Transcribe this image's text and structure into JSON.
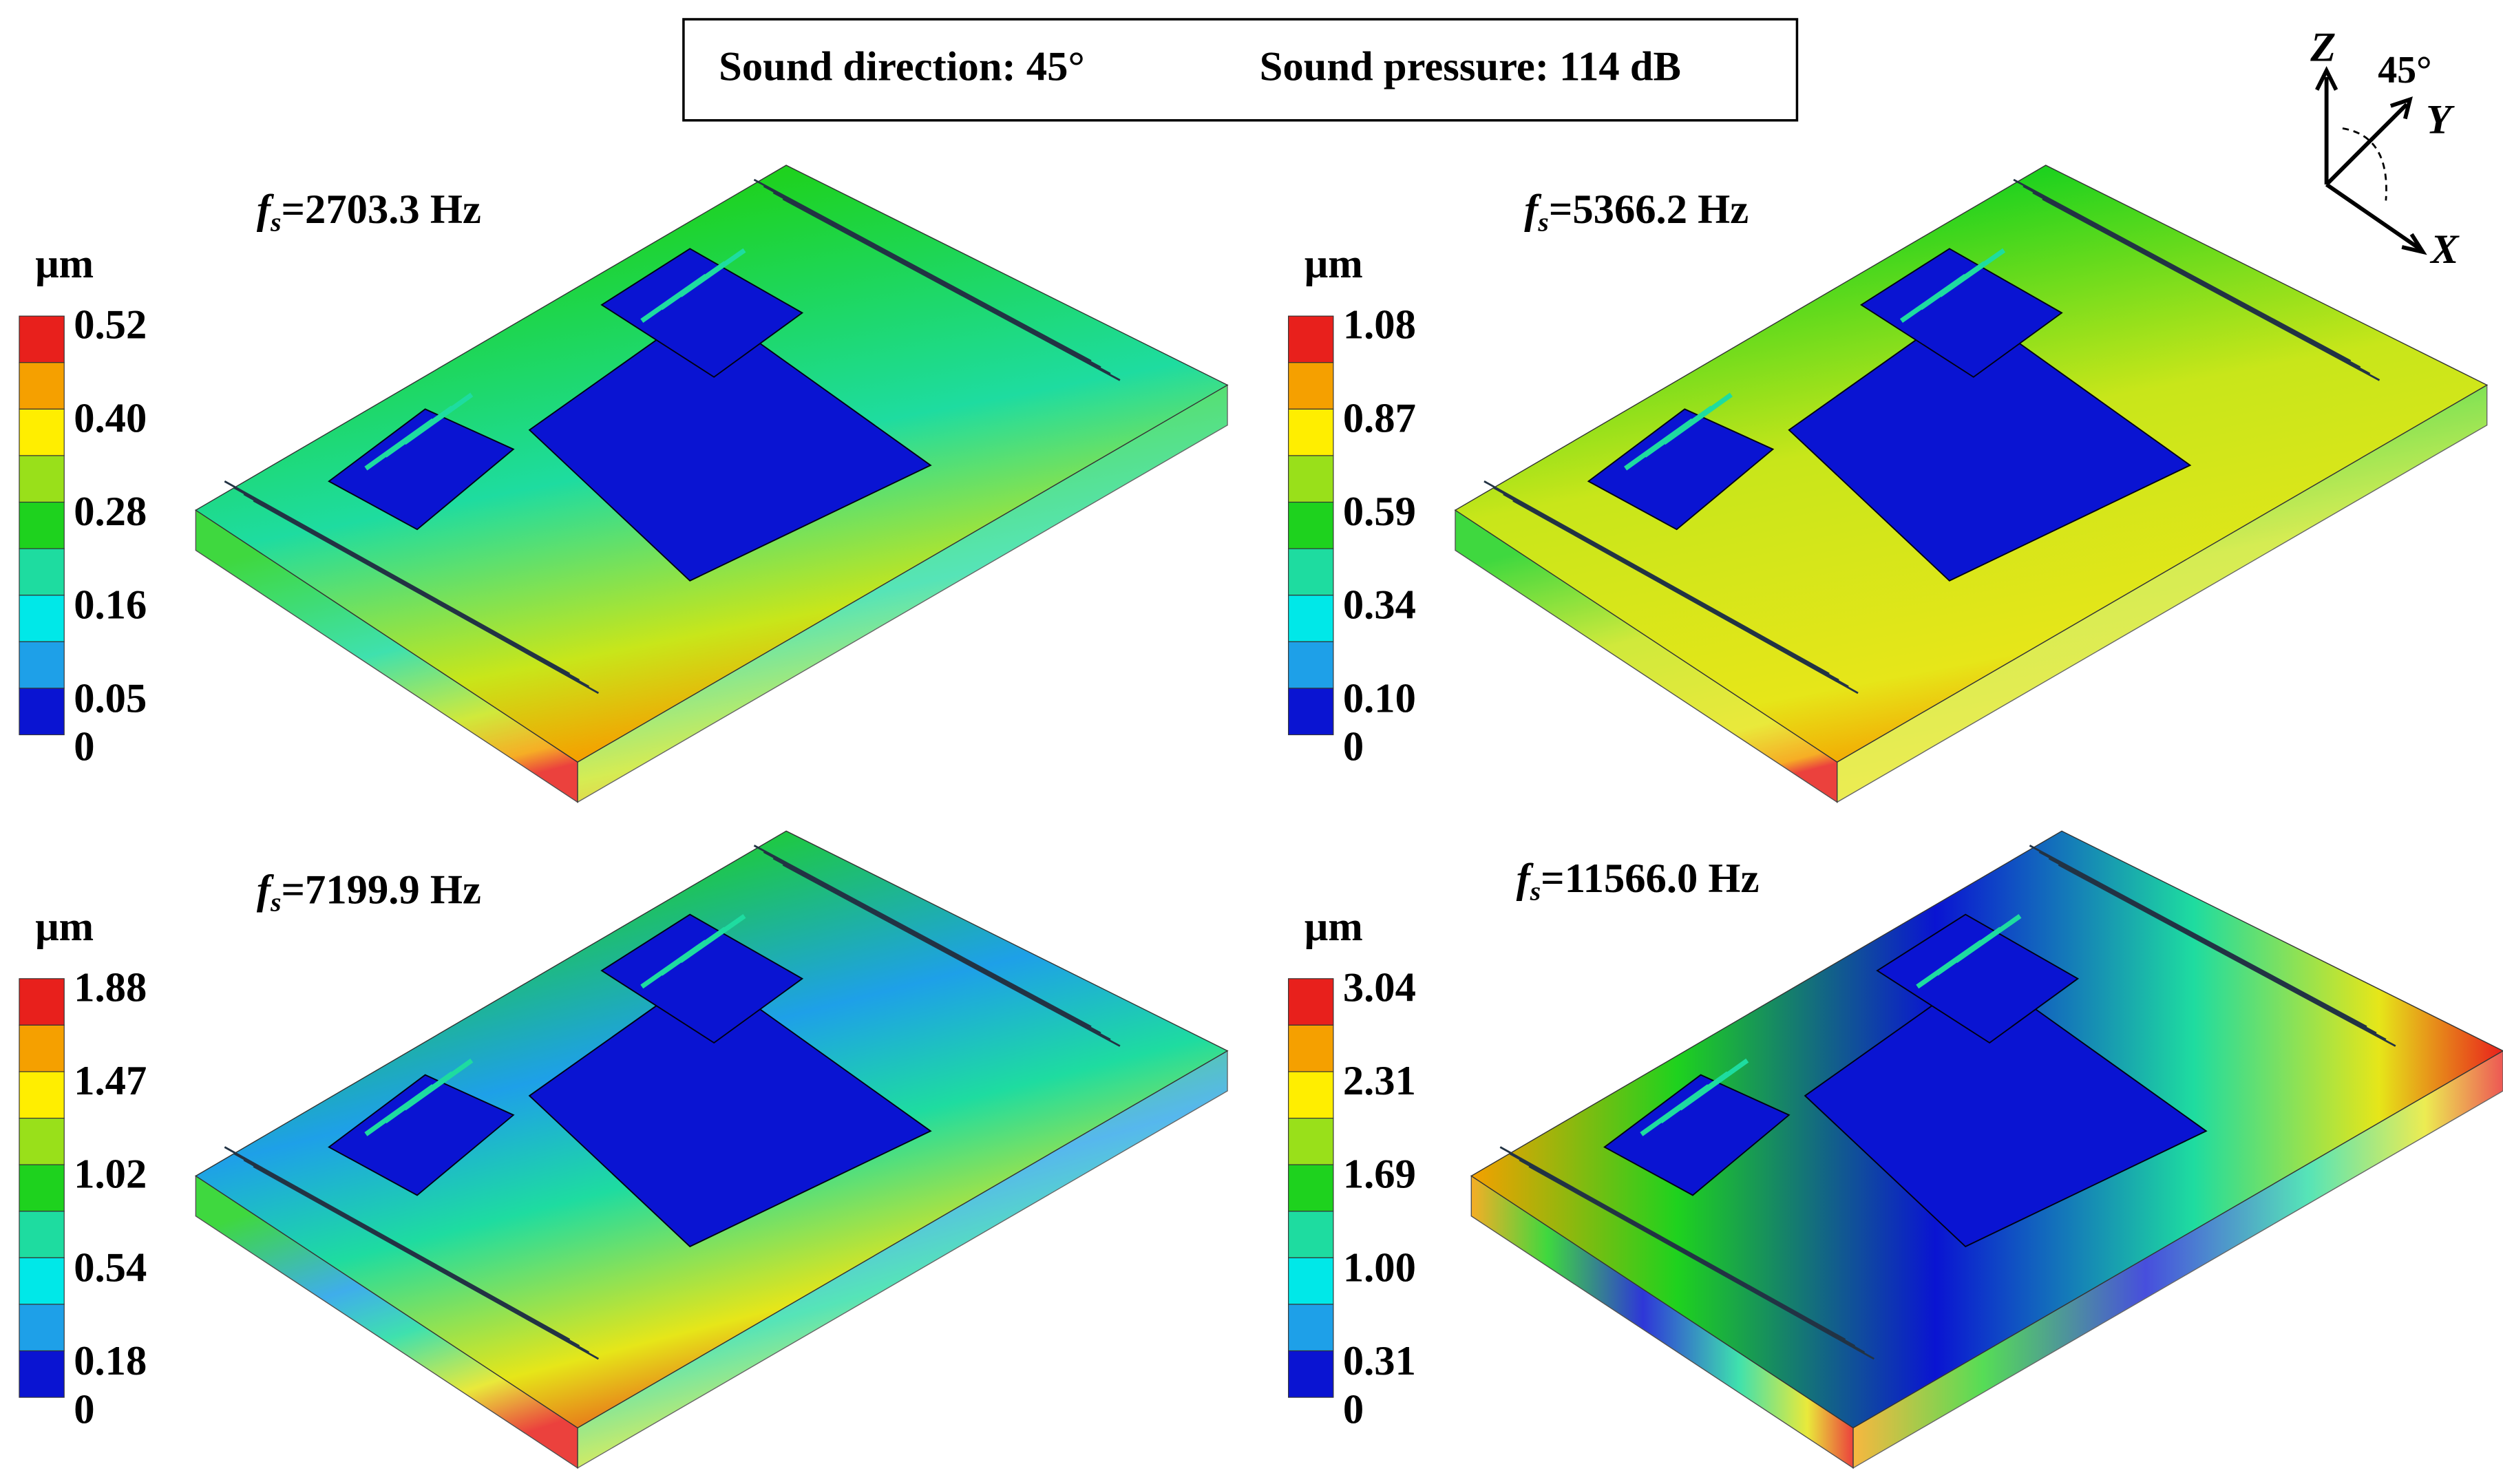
{
  "header": {
    "direction": "Sound direction: 45°",
    "pressure": "Sound pressure: 114 dB"
  },
  "axes": {
    "z": "Z",
    "y": "Y",
    "x": "X",
    "angle": "45°"
  },
  "panels": [
    {
      "symbol": "f",
      "subscript": "s",
      "frequency": "=2703.3 Hz",
      "unit": "μm",
      "scale": [
        "0.52",
        "0.40",
        "0.28",
        "0.16",
        "0.05",
        "0"
      ]
    },
    {
      "symbol": "f",
      "subscript": "s",
      "frequency": "=5366.2 Hz",
      "unit": "μm",
      "scale": [
        "1.08",
        "0.87",
        "0.59",
        "0.34",
        "0.10",
        "0"
      ]
    },
    {
      "symbol": "f",
      "subscript": "s",
      "frequency": "=7199.9 Hz",
      "unit": "μm",
      "scale": [
        "1.88",
        "1.47",
        "1.02",
        "0.54",
        "0.18",
        "0"
      ]
    },
    {
      "symbol": "f",
      "subscript": "s",
      "frequency": "=11566.0 Hz",
      "unit": "μm",
      "scale": [
        "3.04",
        "2.31",
        "1.69",
        "1.00",
        "0.31",
        "0"
      ]
    }
  ]
}
